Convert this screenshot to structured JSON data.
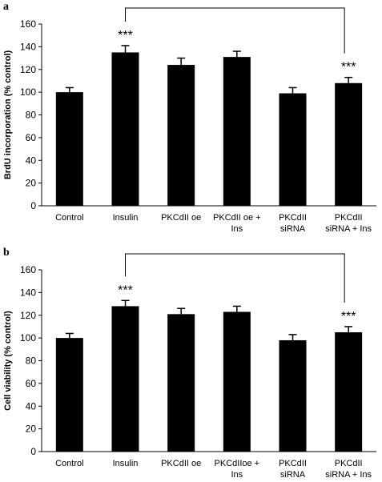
{
  "chart_data": [
    {
      "type": "bar",
      "panel": "a",
      "ylabel": "BrdU incorporation (% control)",
      "categories": [
        "Control",
        "Insulin",
        "PKCdII oe",
        "PKCdII oe +\nIns",
        "PKCdII\nsiRNA",
        "PKCdII\nsiRNA + Ins"
      ],
      "values": [
        100,
        135,
        124,
        131,
        99,
        108
      ],
      "errors": [
        4,
        6,
        6,
        5,
        5,
        5
      ],
      "color": "#000000",
      "ylim": [
        0,
        160
      ],
      "yticks": [
        0,
        20,
        40,
        60,
        80,
        100,
        120,
        140,
        160
      ],
      "annotations": [
        "***",
        "***"
      ]
    },
    {
      "type": "bar",
      "panel": "b",
      "ylabel": "Cell viability (% control)",
      "categories": [
        "Control",
        "Insulin",
        "PKCdII oe",
        "PKCdIIoe +\nIns",
        "PKCdII\nsiRNA",
        "PKCdII\nsiRNA + Ins"
      ],
      "values": [
        100,
        128,
        121,
        123,
        98,
        105
      ],
      "errors": [
        4,
        5,
        5,
        5,
        5,
        5
      ],
      "color": "#000000",
      "ylim": [
        0,
        160
      ],
      "yticks": [
        0,
        20,
        40,
        60,
        80,
        100,
        120,
        140,
        160
      ],
      "annotations": [
        "***",
        "***"
      ]
    }
  ]
}
